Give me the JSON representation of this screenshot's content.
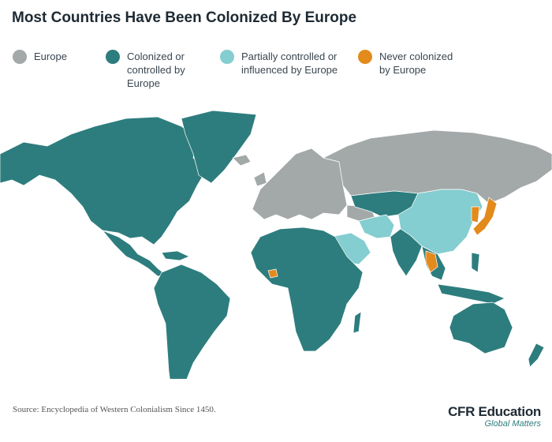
{
  "title": "Most Countries Have Been Colonized By Europe",
  "legend": [
    {
      "label": "Europe",
      "color": "#a2a9a8"
    },
    {
      "label": "Colonized or controlled by Europe",
      "color": "#2e7d7e"
    },
    {
      "label": "Partially controlled or influenced by Europe",
      "color": "#84cdd0"
    },
    {
      "label": "Never colonized by Europe",
      "color": "#e38a1c"
    }
  ],
  "source": "Source: Encyclopedia of Western Colonialism Since 1450.",
  "logo": {
    "name": "CFR Education",
    "tagline": "Global Matters"
  }
}
